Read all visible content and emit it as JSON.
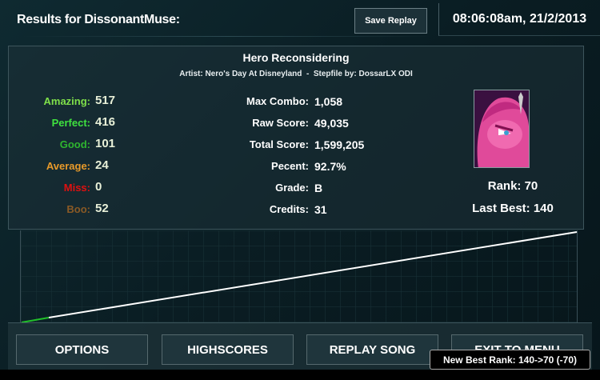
{
  "header": {
    "title": "Results for DissonantMuse:",
    "save_replay": "Save Replay",
    "datetime": "08:06:08am, 21/2/2013"
  },
  "song": {
    "title": "Hero Reconsidering",
    "subtitle": "Artist: Nero's Day At Disneyland  -  Stepfile by: DossarLX ODI"
  },
  "judgements": [
    {
      "label": "Amazing:",
      "value": "517",
      "color": "#7fe04a"
    },
    {
      "label": "Perfect:",
      "value": "416",
      "color": "#3fe23f"
    },
    {
      "label": "Good:",
      "value": "101",
      "color": "#2fb52f"
    },
    {
      "label": "Average:",
      "value": "24",
      "color": "#e79a2a"
    },
    {
      "label": "Miss:",
      "value": "0",
      "color": "#e01010"
    },
    {
      "label": "Boo:",
      "value": "52",
      "color": "#8a5a25"
    }
  ],
  "stats": [
    {
      "label": "Max Combo:",
      "value": "1,058"
    },
    {
      "label": "Raw Score:",
      "value": "49,035"
    },
    {
      "label": "Total Score:",
      "value": "1,599,205"
    },
    {
      "label": "Pecent:",
      "value": "92.7%"
    },
    {
      "label": "Grade:",
      "value": "B"
    },
    {
      "label": "Credits:",
      "value": "31"
    }
  ],
  "rank": "Rank: 70",
  "last_best": "Last Best: 140",
  "graph": {
    "progress_color": "#ffffff",
    "start_color": "#22c02a"
  },
  "buttons": [
    "OPTIONS",
    "HIGHSCORES",
    "REPLAY SONG",
    "EXIT TO MENU"
  ],
  "tooltip": "New Best Rank: 140->70 (-70)"
}
